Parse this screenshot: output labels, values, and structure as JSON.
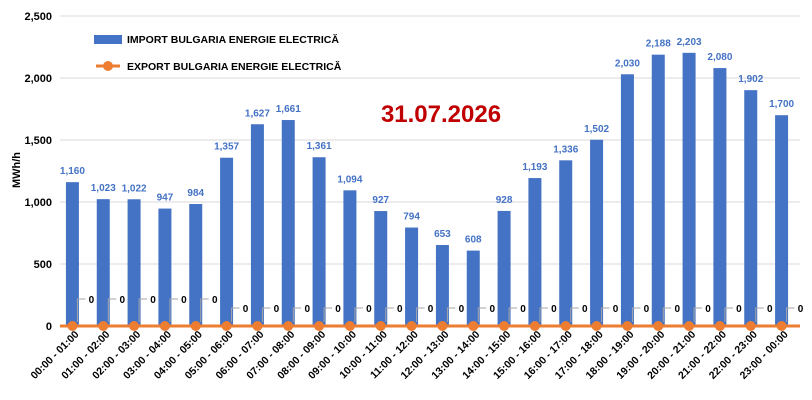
{
  "chart_data": {
    "type": "bar",
    "title": "31.07.2026",
    "ylabel": "MWh/h",
    "xlabel": "",
    "ylim": [
      0,
      2500
    ],
    "yticks": [
      "0",
      "500",
      "1,000",
      "1,500",
      "2,000",
      "2,500"
    ],
    "ytick_values": [
      0,
      500,
      1000,
      1500,
      2000,
      2500
    ],
    "grid": true,
    "legend_position": "top-left",
    "categories": [
      "00:00 - 01:00",
      "01:00 - 02:00",
      "02:00 - 03:00",
      "03:00 - 04:00",
      "04:00 - 05:00",
      "05:00 - 06:00",
      "06:00 - 07:00",
      "07:00 - 08:00",
      "08:00 - 09:00",
      "09:00 - 10:00",
      "10:00 - 11:00",
      "11:00 - 12:00",
      "12:00 - 13:00",
      "13:00 - 14:00",
      "14:00 - 15:00",
      "15:00 - 16:00",
      "16:00 - 17:00",
      "17:00 - 18:00",
      "18:00 - 19:00",
      "19:00 - 20:00",
      "20:00 - 21:00",
      "21:00 - 22:00",
      "22:00 - 23:00",
      "23:00 - 00:00"
    ],
    "series": [
      {
        "name": "IMPORT BULGARIA ENERGIE ELECTRICĂ",
        "kind": "bar",
        "color": "#4472C4",
        "values": [
          1160,
          1023,
          1022,
          947,
          984,
          1357,
          1627,
          1661,
          1361,
          1094,
          927,
          794,
          653,
          608,
          928,
          1193,
          1336,
          1502,
          2030,
          2188,
          2203,
          2080,
          1902,
          1700
        ],
        "labels": [
          "1,160",
          "1,023",
          "1,022",
          "947",
          "984",
          "1,357",
          "1,627",
          "1,661",
          "1,361",
          "1,094",
          "927",
          "794",
          "653",
          "608",
          "928",
          "1,193",
          "1,336",
          "1,502",
          "2,030",
          "2,188",
          "2,203",
          "2,080",
          "1,902",
          "1,700"
        ]
      },
      {
        "name": "EXPORT BULGARIA ENERGIE ELECTRICĂ",
        "kind": "line",
        "color": "#ED7D31",
        "values": [
          0,
          0,
          0,
          0,
          0,
          0,
          0,
          0,
          0,
          0,
          0,
          0,
          0,
          0,
          0,
          0,
          0,
          0,
          0,
          0,
          0,
          0,
          0,
          0
        ],
        "labels": [
          "0",
          "0",
          "0",
          "0",
          "0",
          "0",
          "0",
          "0",
          "0",
          "0",
          "0",
          "0",
          "0",
          "0",
          "0",
          "0",
          "0",
          "0",
          "0",
          "0",
          "0",
          "0",
          "0",
          "0"
        ]
      }
    ],
    "colors": {
      "title": "#C00000",
      "bar_label": "#4472C4",
      "grid": "#D9D9D9"
    }
  }
}
